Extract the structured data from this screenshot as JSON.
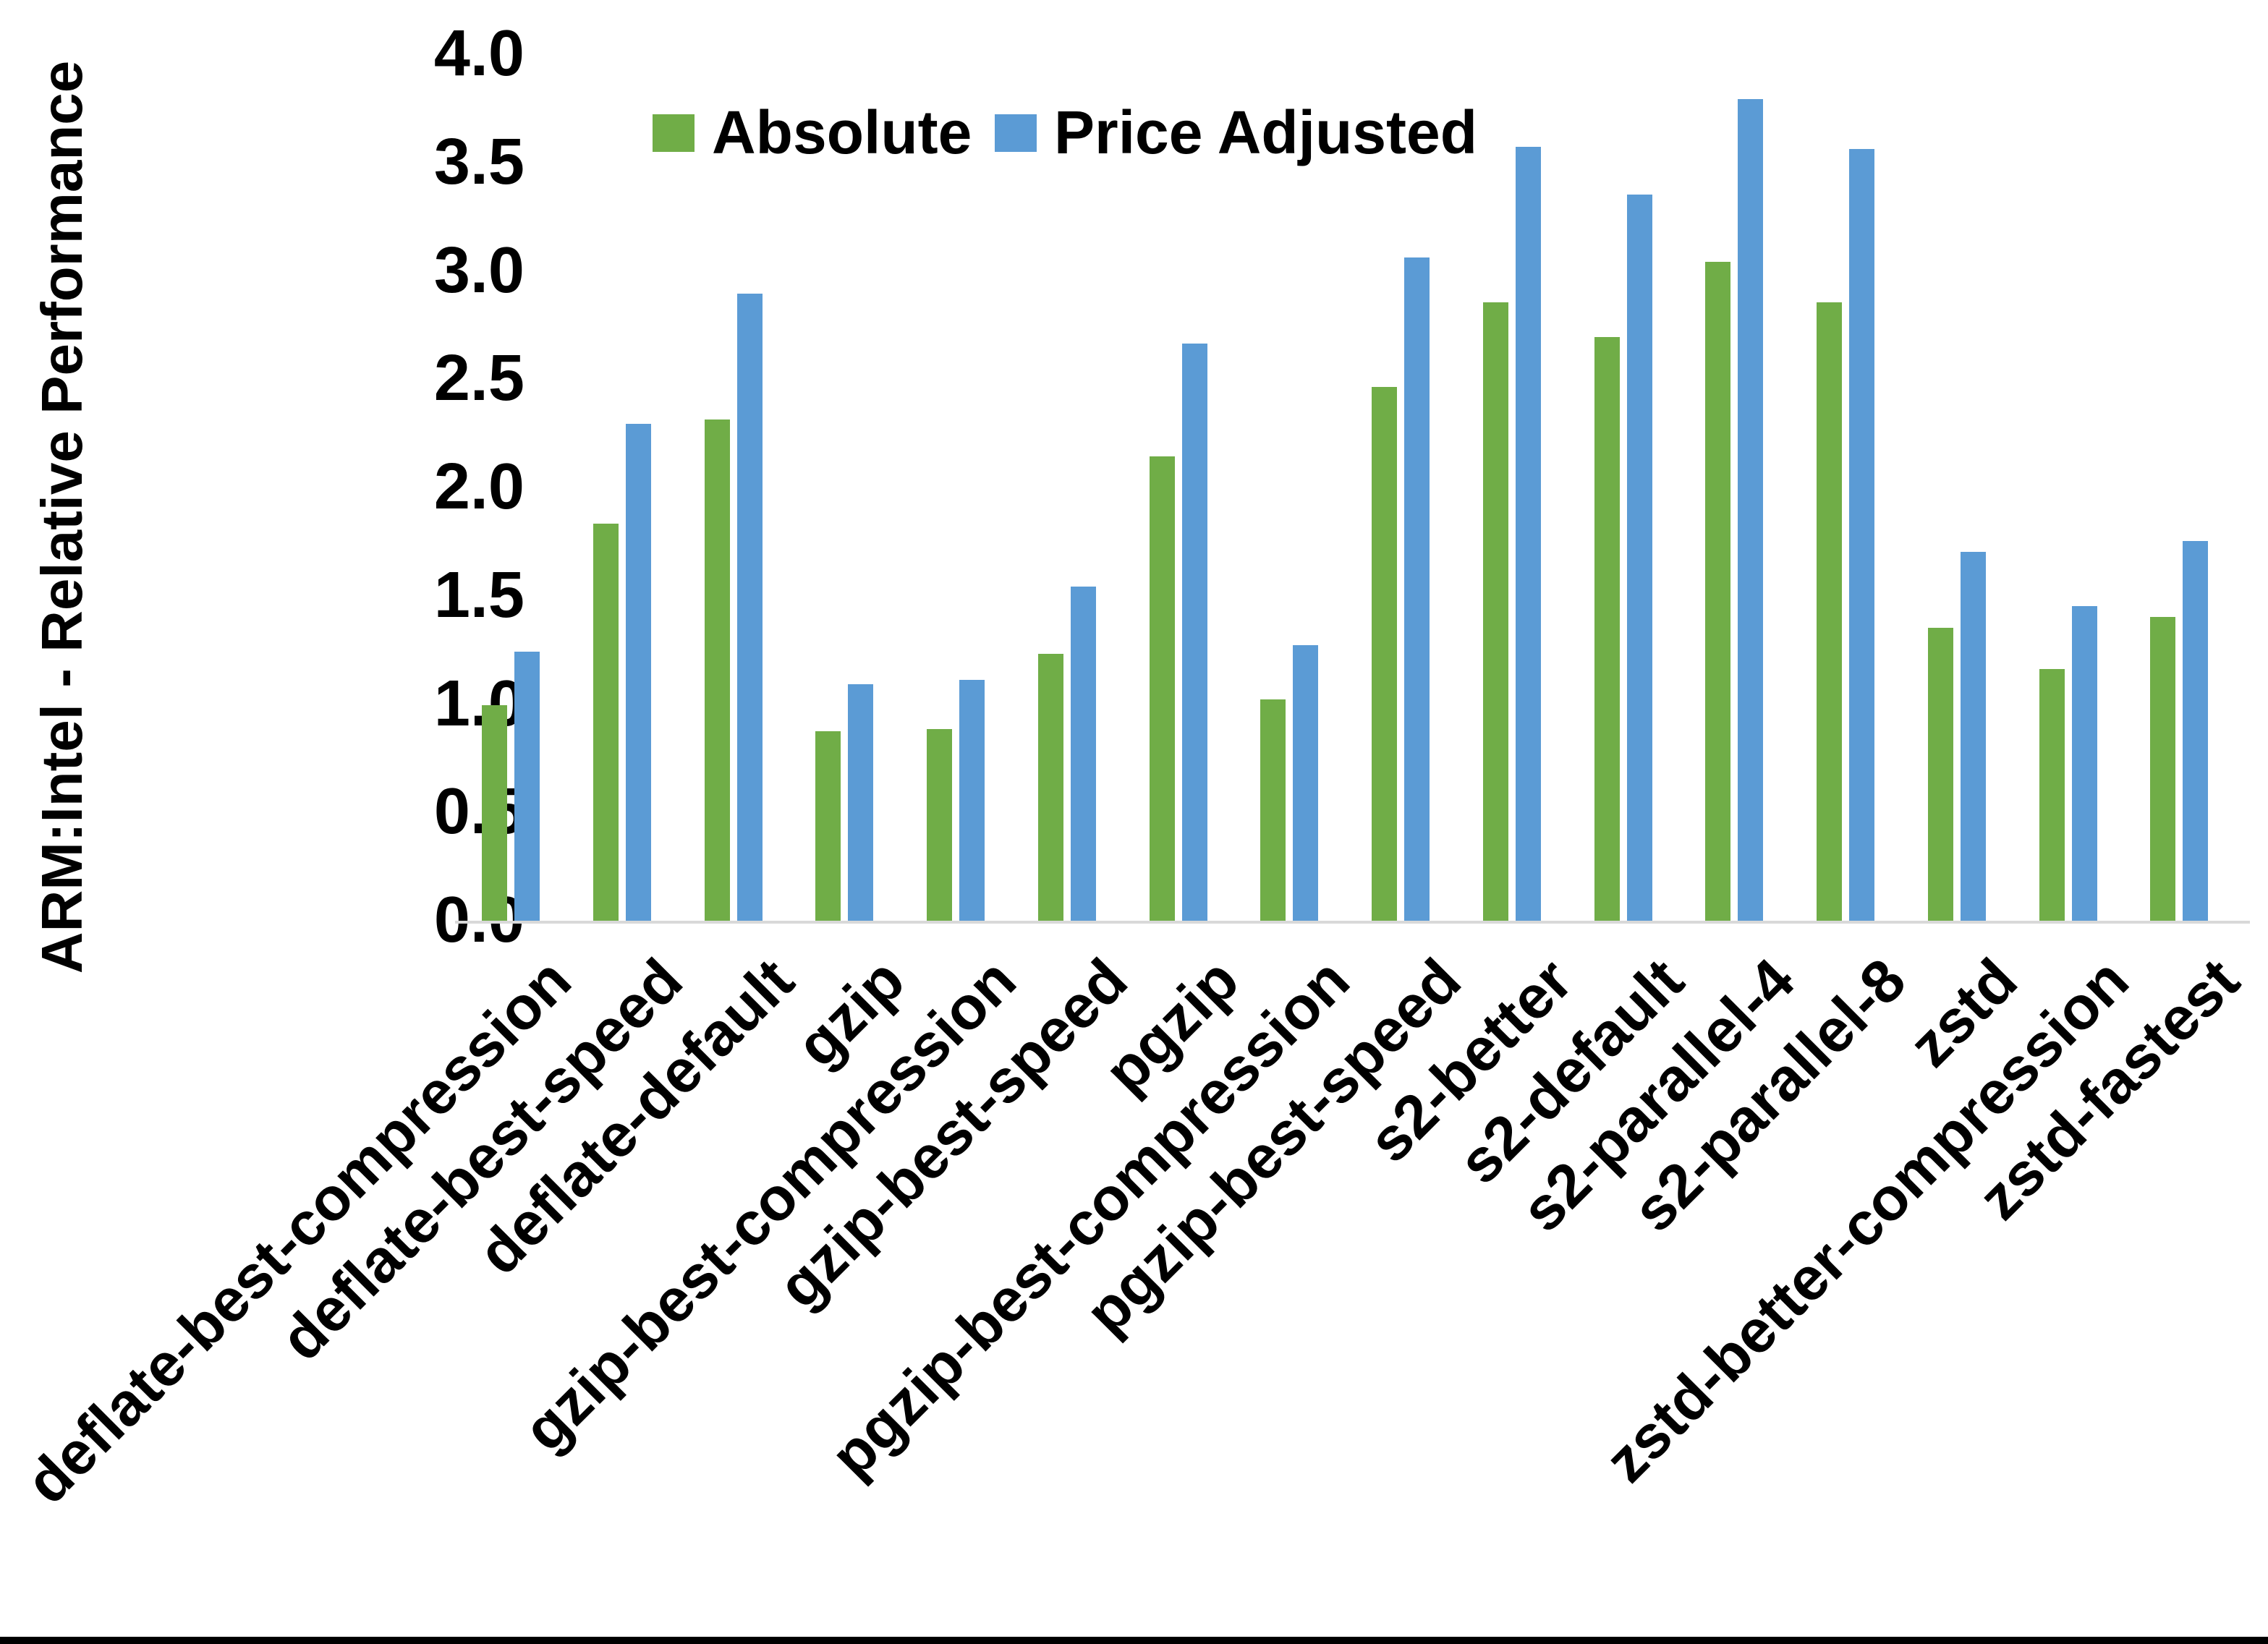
{
  "chart_data": {
    "type": "bar",
    "title": "",
    "ylabel": "ARM:Intel - Relative Performance",
    "xlabel": "",
    "ylim": [
      0.0,
      4.0
    ],
    "ytick_step": 0.5,
    "yticks": [
      "0.0",
      "0.5",
      "1.0",
      "1.5",
      "2.0",
      "2.5",
      "3.0",
      "3.5",
      "4.0"
    ],
    "grid": false,
    "legend_position": "top-center",
    "categories": [
      "deflate-best-compression",
      "deflate-best-speed",
      "deflate-default",
      "gzip",
      "gzip-best-compression",
      "gzip-best-speed",
      "pgzip",
      "pgzip-best-compression",
      "pgzip-best-speed",
      "s2-better",
      "s2-default",
      "s2-parallel-4",
      "s2-parallel-8",
      "zstd",
      "zstd-better-compression",
      "zstd-fastest"
    ],
    "series": [
      {
        "name": "Absolute",
        "color": "#70AD47",
        "values": [
          1.0,
          1.84,
          2.32,
          0.88,
          0.89,
          1.24,
          2.15,
          1.03,
          2.47,
          2.86,
          2.7,
          3.05,
          2.86,
          1.36,
          1.17,
          1.41
        ]
      },
      {
        "name": "Price Adjusted",
        "color": "#5B9BD5",
        "values": [
          1.25,
          2.3,
          2.9,
          1.1,
          1.12,
          1.55,
          2.67,
          1.28,
          3.07,
          3.58,
          3.36,
          3.8,
          3.57,
          1.71,
          1.46,
          1.76
        ]
      }
    ]
  },
  "colors": {
    "background": "#FFFFFF",
    "axis_line": "#D9D9D9",
    "text": "#000000",
    "bottom_edge_bar": "#000000"
  }
}
